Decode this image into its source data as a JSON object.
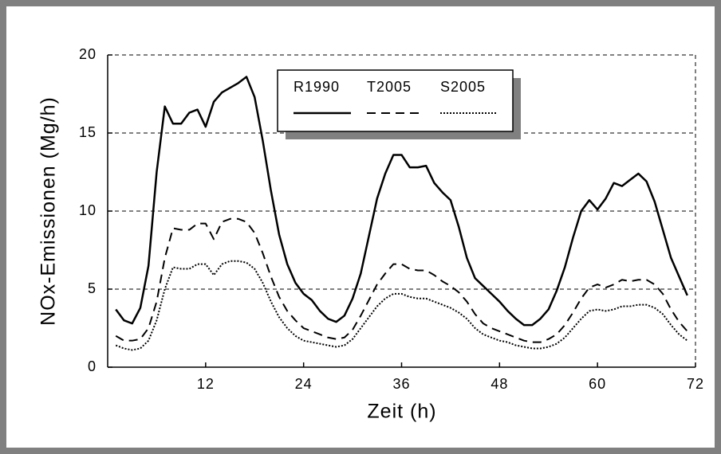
{
  "chart_data": {
    "type": "line",
    "xlabel": "Zeit (h)",
    "ylabel": "NOx-Emissionen (Mg/h)",
    "x": [
      1,
      2,
      3,
      4,
      5,
      6,
      7,
      8,
      9,
      10,
      11,
      12,
      13,
      14,
      15,
      16,
      17,
      18,
      19,
      20,
      21,
      22,
      23,
      24,
      25,
      26,
      27,
      28,
      29,
      30,
      31,
      32,
      33,
      34,
      35,
      36,
      37,
      38,
      39,
      40,
      41,
      42,
      43,
      44,
      45,
      46,
      47,
      48,
      49,
      50,
      51,
      52,
      53,
      54,
      55,
      56,
      57,
      58,
      59,
      60,
      61,
      62,
      63,
      64,
      65,
      66,
      67,
      68,
      69,
      70,
      71
    ],
    "series": [
      {
        "name": "R1990",
        "color": "#000000",
        "dash": "solid",
        "values": [
          3.7,
          3.0,
          2.8,
          3.8,
          6.5,
          12.5,
          16.7,
          15.6,
          15.6,
          16.3,
          16.5,
          15.4,
          17.0,
          17.6,
          17.9,
          18.2,
          18.6,
          17.3,
          14.5,
          11.3,
          8.5,
          6.6,
          5.4,
          4.7,
          4.3,
          3.6,
          3.1,
          2.9,
          3.3,
          4.4,
          6.0,
          8.4,
          10.8,
          12.4,
          13.6,
          13.6,
          12.8,
          12.8,
          12.9,
          11.8,
          11.2,
          10.7,
          9.0,
          7.0,
          5.7,
          5.2,
          4.7,
          4.2,
          3.6,
          3.1,
          2.7,
          2.7,
          3.1,
          3.7,
          4.9,
          6.4,
          8.3,
          10.0,
          10.7,
          10.1,
          10.8,
          11.8,
          11.6,
          12.0,
          12.4,
          11.9,
          10.6,
          8.8,
          7.0,
          5.8,
          4.6
        ]
      },
      {
        "name": "T2005",
        "color": "#000000",
        "dash": "dashed",
        "values": [
          2.0,
          1.7,
          1.7,
          1.8,
          2.5,
          4.2,
          7.0,
          8.9,
          8.8,
          8.8,
          9.2,
          9.2,
          8.2,
          9.3,
          9.5,
          9.5,
          9.3,
          8.6,
          7.3,
          5.8,
          4.5,
          3.6,
          3.0,
          2.5,
          2.3,
          2.1,
          1.9,
          1.8,
          1.9,
          2.4,
          3.3,
          4.3,
          5.3,
          6.0,
          6.6,
          6.6,
          6.3,
          6.2,
          6.2,
          5.9,
          5.5,
          5.2,
          4.8,
          4.2,
          3.4,
          2.8,
          2.5,
          2.3,
          2.1,
          1.9,
          1.7,
          1.6,
          1.6,
          1.8,
          2.1,
          2.7,
          3.5,
          4.4,
          5.1,
          5.3,
          5.1,
          5.3,
          5.6,
          5.5,
          5.6,
          5.6,
          5.3,
          4.7,
          3.7,
          2.9,
          2.3
        ]
      },
      {
        "name": "S2005",
        "color": "#000000",
        "dash": "dotted",
        "values": [
          1.4,
          1.2,
          1.1,
          1.2,
          1.7,
          3.0,
          5.0,
          6.4,
          6.3,
          6.3,
          6.6,
          6.6,
          5.9,
          6.6,
          6.8,
          6.8,
          6.7,
          6.3,
          5.4,
          4.2,
          3.2,
          2.5,
          2.0,
          1.7,
          1.6,
          1.5,
          1.4,
          1.3,
          1.4,
          1.8,
          2.5,
          3.2,
          3.9,
          4.4,
          4.7,
          4.7,
          4.5,
          4.4,
          4.4,
          4.2,
          4.0,
          3.8,
          3.5,
          3.1,
          2.5,
          2.1,
          1.9,
          1.7,
          1.6,
          1.4,
          1.3,
          1.2,
          1.2,
          1.3,
          1.5,
          1.9,
          2.5,
          3.1,
          3.6,
          3.7,
          3.6,
          3.7,
          3.9,
          3.9,
          4.0,
          4.0,
          3.8,
          3.4,
          2.7,
          2.1,
          1.7
        ]
      }
    ],
    "xlim": [
      0,
      72
    ],
    "xticks": [
      12,
      24,
      36,
      48,
      60,
      72
    ],
    "ylim": [
      0,
      20
    ],
    "yticks": [
      0,
      5,
      10,
      15,
      20
    ],
    "grid": true,
    "legend": "top"
  }
}
